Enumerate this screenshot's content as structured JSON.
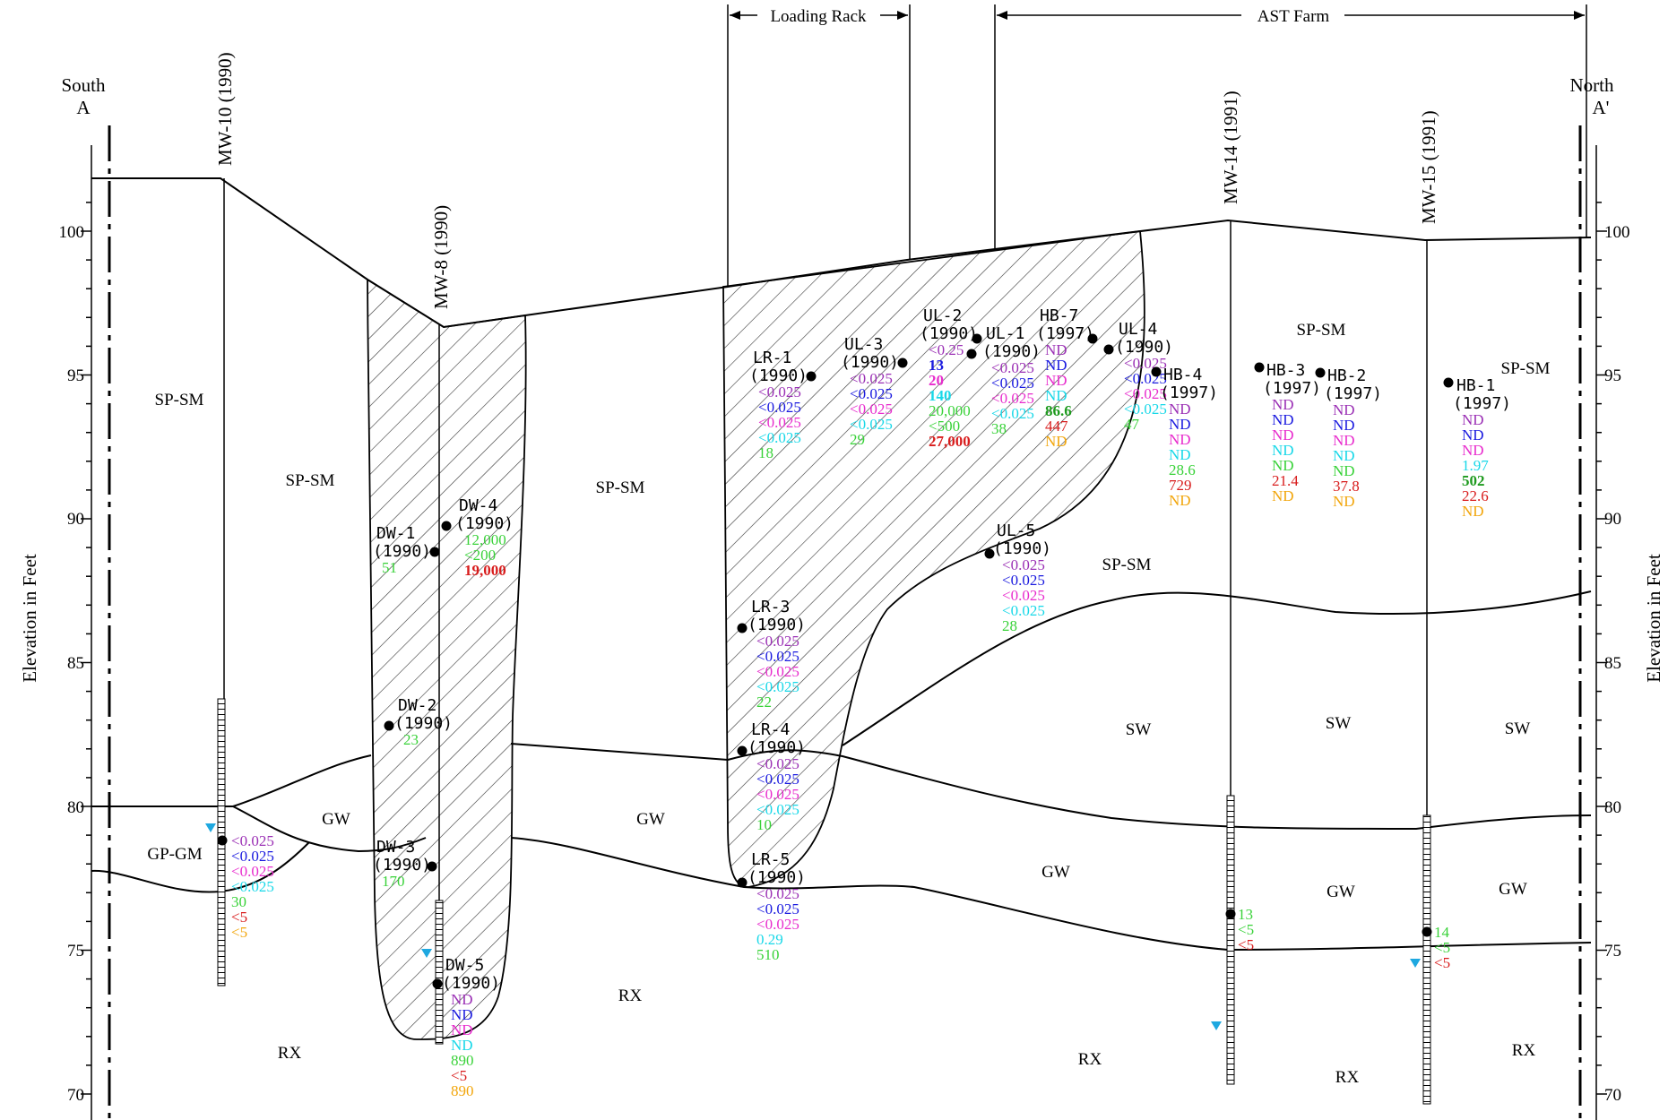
{
  "labels": {
    "south": "South",
    "a": "A",
    "north": "North",
    "a_prime": "A'",
    "y_axis_left": "Elevation in Feet",
    "y_axis_right": "Elevation in Feet",
    "loading_rack": "Loading  Rack",
    "ast_farm": "AST Farm"
  },
  "axis": {
    "ticks": [
      "100",
      "95",
      "90",
      "85",
      "80",
      "75",
      "70"
    ]
  },
  "colors": {
    "purple": "#9b30b5",
    "blue": "#1a1adf",
    "magenta": "#e82ccd",
    "cyan": "#18d8e8",
    "green": "#39d239",
    "dkgreen": "#1e9a1e",
    "red": "#d81c1c",
    "orange": "#f2a60c",
    "water": "#1ea8e0"
  },
  "wells": {
    "mw10": "MW-10 (1990)",
    "mw8": "MW-8 (1990)",
    "mw14": "MW-14 (1991)",
    "mw15": "MW-15 (1991)"
  },
  "soils": {
    "sp1": "SP-SM",
    "sp2": "SP-SM",
    "sp3": "SP-SM",
    "sp4": "SP-SM",
    "sp5": "SP-SM",
    "sp6": "SP-SM",
    "gpgm": "GP-GM",
    "gw1": "GW",
    "gw2": "GW",
    "gw3": "GW",
    "gw4": "GW",
    "gw5": "GW",
    "sw1": "SW",
    "sw2": "SW",
    "sw3": "SW",
    "rx1": "RX",
    "rx2": "RX",
    "rx3": "RX",
    "rx4": "RX",
    "rx5": "RX"
  },
  "samples": {
    "lr1": {
      "name": "LR-1",
      "year": "(1990)",
      "v": [
        "<0.025",
        "<0.025",
        "<0.025",
        "<0.025",
        "18"
      ]
    },
    "ul3": {
      "name": "UL-3",
      "year": "(1990)",
      "v": [
        "<0.025",
        "<0.025",
        "<0.025",
        "<0.025",
        "29"
      ]
    },
    "ul2": {
      "name": "UL-2",
      "year": "(1990)",
      "v": [
        "<0.25",
        "13",
        "20",
        "140",
        "20,000",
        "<500",
        "27,000"
      ]
    },
    "ul1": {
      "name": "UL-1",
      "year": "(1990)",
      "v": [
        "<0.025",
        "<0.025",
        "<0.025",
        "<0.025",
        "38"
      ]
    },
    "hb7": {
      "name": "HB-7",
      "year": "(1997)",
      "v": [
        "ND",
        "ND",
        "ND",
        "ND",
        "86.6",
        "447",
        "ND"
      ]
    },
    "ul4": {
      "name": "UL-4",
      "year": "(1990)",
      "v": [
        "<0.025",
        "<0.025",
        "<0.025",
        "<0.025",
        "47"
      ]
    },
    "hb4": {
      "name": "HB-4",
      "year": "(1997)",
      "v": [
        "ND",
        "ND",
        "ND",
        "ND",
        "28.6",
        "729",
        "ND"
      ]
    },
    "hb3": {
      "name": "HB-3",
      "year": "(1997)",
      "v": [
        "ND",
        "ND",
        "ND",
        "ND",
        "ND",
        "21.4",
        "ND"
      ]
    },
    "hb2": {
      "name": "HB-2",
      "year": "(1997)",
      "v": [
        "ND",
        "ND",
        "ND",
        "ND",
        "ND",
        "37.8",
        "ND"
      ]
    },
    "hb1": {
      "name": "HB-1",
      "year": "(1997)",
      "v": [
        "ND",
        "ND",
        "ND",
        "1.97",
        "502",
        "22.6",
        "ND"
      ]
    },
    "dw1": {
      "name": "DW-1",
      "year": "(1990)",
      "v": [
        "51"
      ]
    },
    "dw4": {
      "name": "DW-4",
      "year": "(1990)",
      "v": [
        "12,000",
        "<200",
        "19,000"
      ]
    },
    "dw2": {
      "name": "DW-2",
      "year": "(1990)",
      "v": [
        "23"
      ]
    },
    "dw3": {
      "name": "DW-3",
      "year": "(1990)",
      "v": [
        "170"
      ]
    },
    "dw5": {
      "name": "DW-5",
      "year": "(1990)",
      "v": [
        "ND",
        "ND",
        "ND",
        "ND",
        "890",
        "<5",
        "890"
      ]
    },
    "ul5": {
      "name": "UL-5",
      "year": "(1990)",
      "v": [
        "<0.025",
        "<0.025",
        "<0.025",
        "<0.025",
        "28"
      ]
    },
    "lr3": {
      "name": "LR-3",
      "year": "(1990)",
      "v": [
        "<0.025",
        "<0.025",
        "<0.025",
        "<0.025",
        "22"
      ]
    },
    "lr4": {
      "name": "LR-4",
      "year": "(1990)",
      "v": [
        "<0.025",
        "<0.025",
        "<0.025",
        "<0.025",
        "10"
      ]
    },
    "lr5": {
      "name": "LR-5",
      "year": "(1990)",
      "v": [
        "<0.025",
        "<0.025",
        "<0.025",
        "0.29",
        "510"
      ]
    },
    "mw10s": {
      "v": [
        "<0.025",
        "<0.025",
        "<0.025",
        "<0.025",
        "30",
        "<5",
        "<5"
      ]
    },
    "mw14s": {
      "v": [
        "13",
        "<5",
        "<5"
      ]
    },
    "mw15s": {
      "v": [
        "14",
        "<5",
        "<5"
      ]
    }
  }
}
